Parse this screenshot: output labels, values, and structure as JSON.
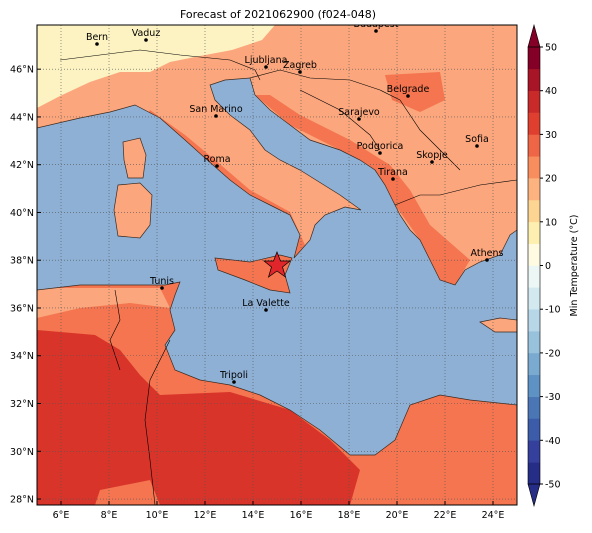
{
  "title": "Forecast of 2021062900 (f024-048)",
  "xlim": [
    5,
    25
  ],
  "ylim": [
    27.75,
    47.85
  ],
  "lon_ticks": [
    {
      "value": 6,
      "label": "6°E"
    },
    {
      "value": 8,
      "label": "8°E"
    },
    {
      "value": 10,
      "label": "10°E"
    },
    {
      "value": 12,
      "label": "12°E"
    },
    {
      "value": 14,
      "label": "14°E"
    },
    {
      "value": 16,
      "label": "16°E"
    },
    {
      "value": 18,
      "label": "18°E"
    },
    {
      "value": 20,
      "label": "20°E"
    },
    {
      "value": 22,
      "label": "22°E"
    },
    {
      "value": 24,
      "label": "24°E"
    }
  ],
  "lat_ticks": [
    {
      "value": 28,
      "label": "28°N"
    },
    {
      "value": 30,
      "label": "30°N"
    },
    {
      "value": 32,
      "label": "32°N"
    },
    {
      "value": 34,
      "label": "34°N"
    },
    {
      "value": 36,
      "label": "36°N"
    },
    {
      "value": 38,
      "label": "38°N"
    },
    {
      "value": 40,
      "label": "40°N"
    },
    {
      "value": 42,
      "label": "42°N"
    },
    {
      "value": 44,
      "label": "44°N"
    },
    {
      "value": 46,
      "label": "46°N"
    }
  ],
  "cities": [
    "Bern",
    "Vaduz",
    "Budapest",
    "Ljubljana",
    "Zagreb",
    "Belgrade",
    "Sarajevo",
    "San Marino",
    "Roma",
    "Podgorica",
    "Skopje",
    "Sofia",
    "Tirana",
    "Athens",
    "Tunis",
    "La Valette",
    "Tripoli"
  ],
  "colorbar": {
    "label": "Min Temperature (°C)",
    "clim": [
      -50,
      50
    ],
    "ticks": [
      -50,
      -40,
      -30,
      -20,
      -10,
      0,
      10,
      20,
      30,
      40,
      50
    ],
    "colors": [
      "#262d87",
      "#353f9c",
      "#3c5ba8",
      "#4a76b5",
      "#5f92c4",
      "#7aaad0",
      "#98c2dc",
      "#b7d7e8",
      "#d2e9f0",
      "#ecf7f5",
      "#fefbe2",
      "#fdefb0",
      "#fdd593",
      "#fcb37f",
      "#f88e5e",
      "#ef6646",
      "#de3f2e",
      "#c82a2a",
      "#a81527",
      "#850026"
    ]
  }
}
